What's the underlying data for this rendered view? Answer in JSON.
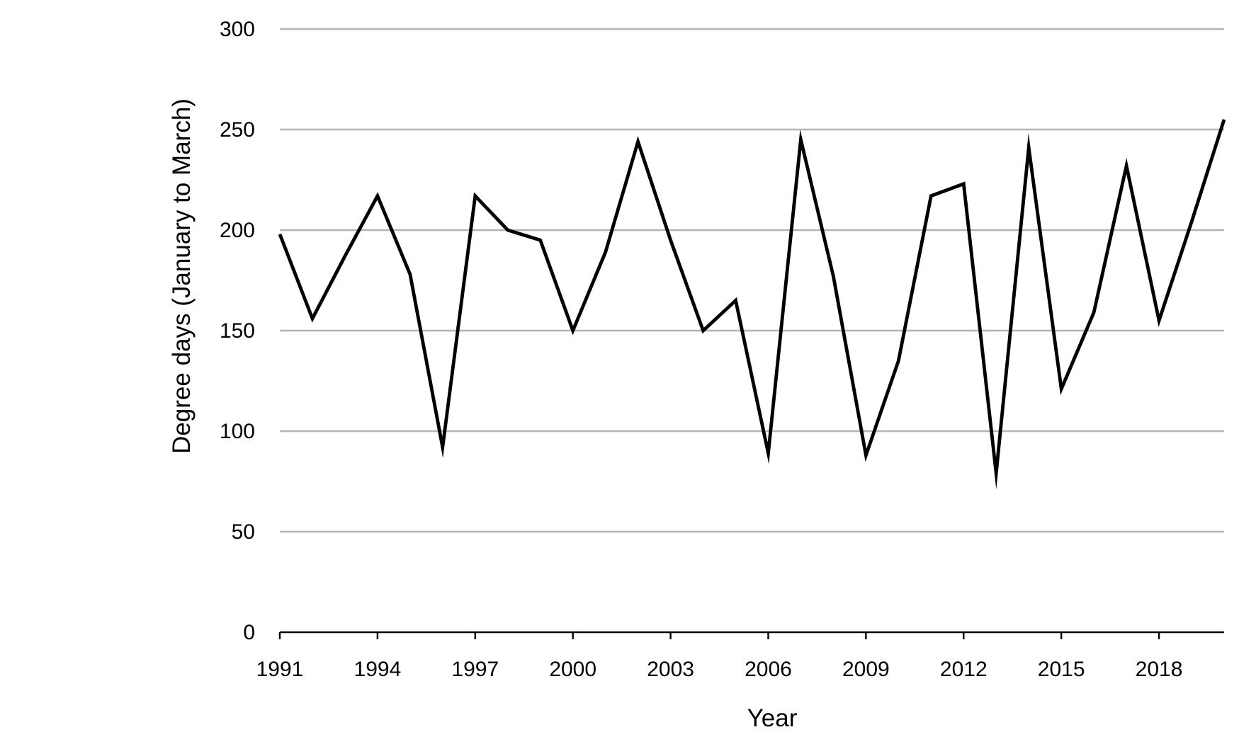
{
  "chart_data": {
    "type": "line",
    "title": "",
    "xlabel": "Year",
    "ylabel": "Degree days (January to March)",
    "ylim": [
      0,
      300
    ],
    "y_ticks": [
      "0",
      "50",
      "100",
      "150",
      "200",
      "250",
      "300"
    ],
    "x_ticks": [
      "1991",
      "1994",
      "1997",
      "2000",
      "2003",
      "2006",
      "2009",
      "2012",
      "2015",
      "2018"
    ],
    "grid": "horizontal",
    "legend": "none",
    "line_color": "#000000",
    "grid_color": "#b3b3b3",
    "x": [
      1991,
      1992,
      1993,
      1994,
      1995,
      1996,
      1997,
      1998,
      1999,
      2000,
      2001,
      2002,
      2003,
      2004,
      2005,
      2006,
      2007,
      2008,
      2009,
      2010,
      2011,
      2012,
      2013,
      2014,
      2015,
      2016,
      2017,
      2018,
      2019,
      2020
    ],
    "series": [
      {
        "values": [
          198,
          156,
          187,
          217,
          178,
          92,
          217,
          200,
          195,
          150,
          189,
          244,
          195,
          150,
          165,
          89,
          245,
          177,
          88,
          135,
          217,
          223,
          79,
          241,
          121,
          159,
          232,
          155,
          204,
          255
        ]
      }
    ]
  }
}
